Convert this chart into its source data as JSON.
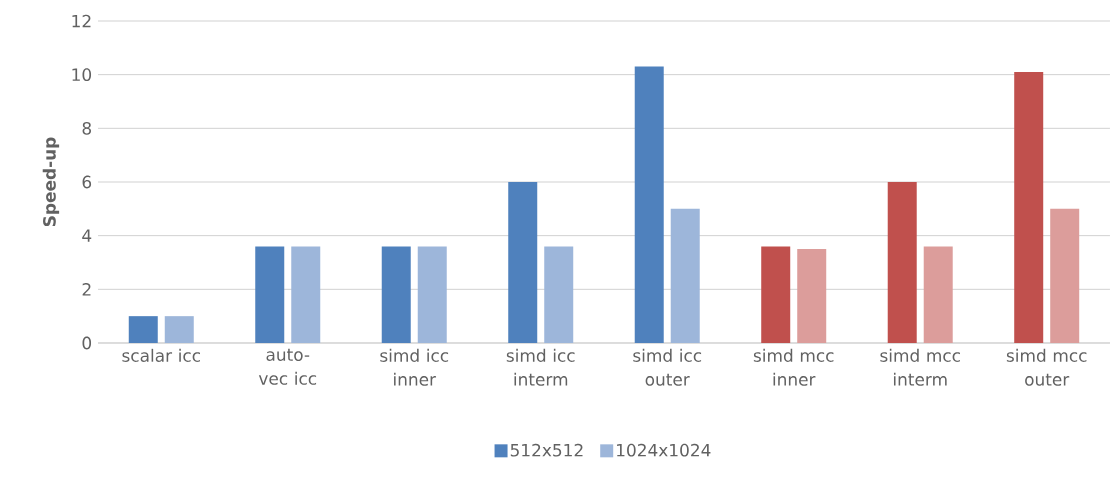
{
  "chart_data": {
    "type": "bar",
    "ylabel": "Speed-up",
    "categories": [
      "scalar icc",
      "auto-vec icc",
      "simd icc inner",
      "simd icc interm",
      "simd icc outer",
      "simd mcc inner",
      "simd mcc interm",
      "simd mcc outer"
    ],
    "series": [
      {
        "name": "512x512",
        "colors": [
          "#4f81bd",
          "#4f81bd",
          "#4f81bd",
          "#4f81bd",
          "#4f81bd",
          "#c0504d",
          "#c0504d",
          "#c0504d"
        ],
        "values": [
          1.0,
          3.6,
          3.6,
          6.0,
          10.3,
          3.6,
          6.0,
          10.1
        ]
      },
      {
        "name": "1024x1024",
        "colors": [
          "#9db6da",
          "#9db6da",
          "#9db6da",
          "#9db6da",
          "#9db6da",
          "#dc9d9b",
          "#dc9d9b",
          "#dc9d9b"
        ],
        "values": [
          1.0,
          3.6,
          3.6,
          3.6,
          5.0,
          3.5,
          3.6,
          5.0
        ]
      }
    ],
    "ylim": [
      0,
      12
    ],
    "yticks": [
      0,
      2,
      4,
      6,
      8,
      10,
      12
    ],
    "grid": "y",
    "legend": "bottom"
  }
}
